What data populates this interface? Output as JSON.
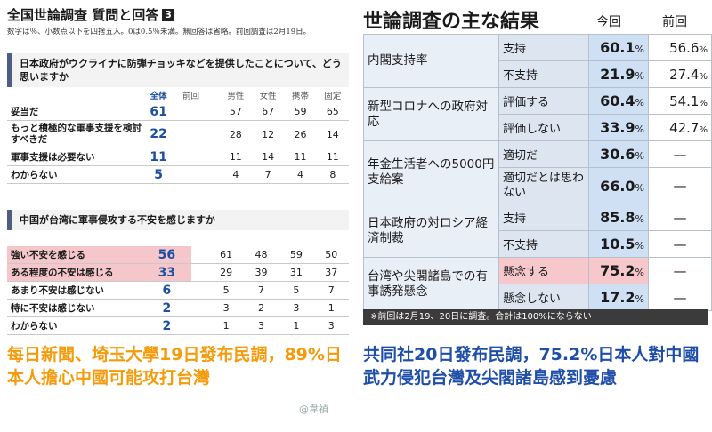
{
  "left": {
    "title": "全国世論調査 質問と回答",
    "title_num": "3",
    "note": "数字は％、小数点以下を四捨五入。0は0.5％未満。無回答は省略。前回調査は2月19日。",
    "q1": {
      "question": "日本政府がウクライナに防弾チョッキなどを提供したことについて、どう思いますか",
      "headers": [
        "全体",
        "前回",
        "男性",
        "女性",
        "携帯",
        "固定"
      ],
      "rows": [
        {
          "label": "妥当だ",
          "total": "61",
          "prev": "",
          "male": "57",
          "female": "67",
          "mobile": "59",
          "fixed": "65"
        },
        {
          "label": "もっと積極的な軍事支援を検討すべきだ",
          "total": "22",
          "prev": "",
          "male": "28",
          "female": "12",
          "mobile": "26",
          "fixed": "14"
        },
        {
          "label": "軍事支援は必要ない",
          "total": "11",
          "prev": "",
          "male": "11",
          "female": "14",
          "mobile": "11",
          "fixed": "11"
        },
        {
          "label": "わからない",
          "total": "5",
          "prev": "",
          "male": "4",
          "female": "7",
          "mobile": "4",
          "fixed": "8"
        }
      ]
    },
    "q2": {
      "question": "中国が台湾に軍事侵攻する不安を感じますか",
      "rows": [
        {
          "label": "強い不安を感じる",
          "total": "56",
          "prev": "",
          "male": "61",
          "female": "48",
          "mobile": "59",
          "fixed": "50"
        },
        {
          "label": "ある程度の不安は感じる",
          "total": "33",
          "prev": "",
          "male": "29",
          "female": "39",
          "mobile": "31",
          "fixed": "37"
        },
        {
          "label": "あまり不安は感じない",
          "total": "6",
          "prev": "",
          "male": "5",
          "female": "7",
          "mobile": "5",
          "fixed": "7"
        },
        {
          "label": "特に不安は感じない",
          "total": "2",
          "prev": "",
          "male": "3",
          "female": "2",
          "mobile": "3",
          "fixed": "1"
        },
        {
          "label": "わからない",
          "total": "2",
          "prev": "",
          "male": "1",
          "female": "3",
          "mobile": "1",
          "fixed": "3"
        }
      ]
    },
    "caption": "每日新聞、埼玉大學19日發布民調，89%日本人擔心中國可能攻打台灣",
    "watermark": "@韋禎"
  },
  "right": {
    "title": "世論調査の主な結果",
    "col_now": "今回",
    "col_prev": "前回",
    "pct": "%",
    "dash": "—",
    "groups": [
      {
        "topic": "内閣支持率",
        "rows": [
          {
            "option": "支持",
            "now": "60.1",
            "prev": "56.6"
          },
          {
            "option": "不支持",
            "now": "21.9",
            "prev": "27.4"
          }
        ]
      },
      {
        "topic": "新型コロナへの政府対応",
        "rows": [
          {
            "option": "評価する",
            "now": "60.4",
            "prev": "54.1"
          },
          {
            "option": "評価しない",
            "now": "33.9",
            "prev": "42.7"
          }
        ]
      },
      {
        "topic": "年金生活者への5000円支給案",
        "rows": [
          {
            "option": "適切だ",
            "now": "30.6",
            "prev": ""
          },
          {
            "option": "適切だとは思わない",
            "now": "66.0",
            "prev": ""
          }
        ]
      },
      {
        "topic": "日本政府の対ロシア経済制裁",
        "rows": [
          {
            "option": "支持",
            "now": "85.8",
            "prev": ""
          },
          {
            "option": "不支持",
            "now": "10.5",
            "prev": ""
          }
        ]
      },
      {
        "topic": "台湾や尖閣諸島での有事誘発懸念",
        "rows": [
          {
            "option": "懸念する",
            "now": "75.2",
            "prev": ""
          },
          {
            "option": "懸念しない",
            "now": "17.2",
            "prev": ""
          }
        ]
      }
    ],
    "note": "※前回は2月19、20日に調査。合計は100%にならない",
    "caption": "共同社20日發布民調，75.2%日本人對中國武力侵犯台灣及尖閣諸島感到憂慮"
  }
}
